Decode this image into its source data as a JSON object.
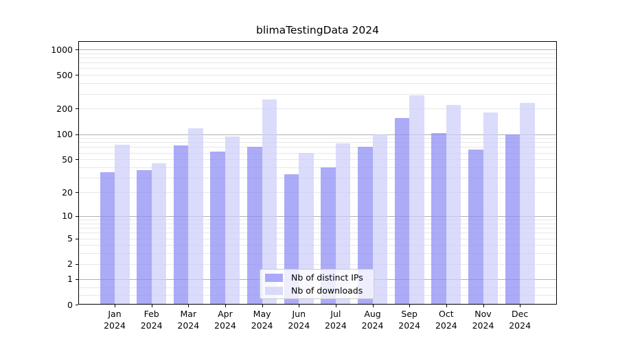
{
  "title": "blimaTestingData 2024",
  "colors": {
    "distinct_ips_bar": "rgba(139,139,245,0.72)",
    "downloads_bar": "rgba(205,205,250,0.72)",
    "major_grid": "#b0b0b0",
    "minor_grid": "#e7e7e7"
  },
  "legend": {
    "items": [
      {
        "label": "Nb of distinct IPs",
        "color": "rgba(139,139,245,0.72)"
      },
      {
        "label": "Nb of downloads",
        "color": "rgba(205,205,250,0.72)"
      }
    ]
  },
  "chart_data": {
    "type": "bar",
    "title": "blimaTestingData 2024",
    "categories": [
      "Jan",
      "Feb",
      "Mar",
      "Apr",
      "May",
      "Jun",
      "Jul",
      "Aug",
      "Sep",
      "Oct",
      "Nov",
      "Dec"
    ],
    "x_sublabel": "2024",
    "series": [
      {
        "name": "Nb of distinct IPs",
        "color": "rgba(139,139,245,0.72)",
        "values": [
          35,
          37,
          74,
          62,
          71,
          33,
          40,
          70,
          156,
          102,
          65,
          100
        ]
      },
      {
        "name": "Nb of downloads",
        "color": "rgba(205,205,250,0.72)",
        "values": [
          75,
          45,
          118,
          93,
          257,
          60,
          77,
          100,
          290,
          220,
          180,
          235
        ]
      }
    ],
    "y_ticks": [
      0,
      1,
      2,
      5,
      10,
      20,
      50,
      100,
      200,
      500,
      1000
    ],
    "scale": "log1p",
    "ylim": [
      0,
      1250
    ],
    "grid": true,
    "legend_position": "lower center"
  }
}
